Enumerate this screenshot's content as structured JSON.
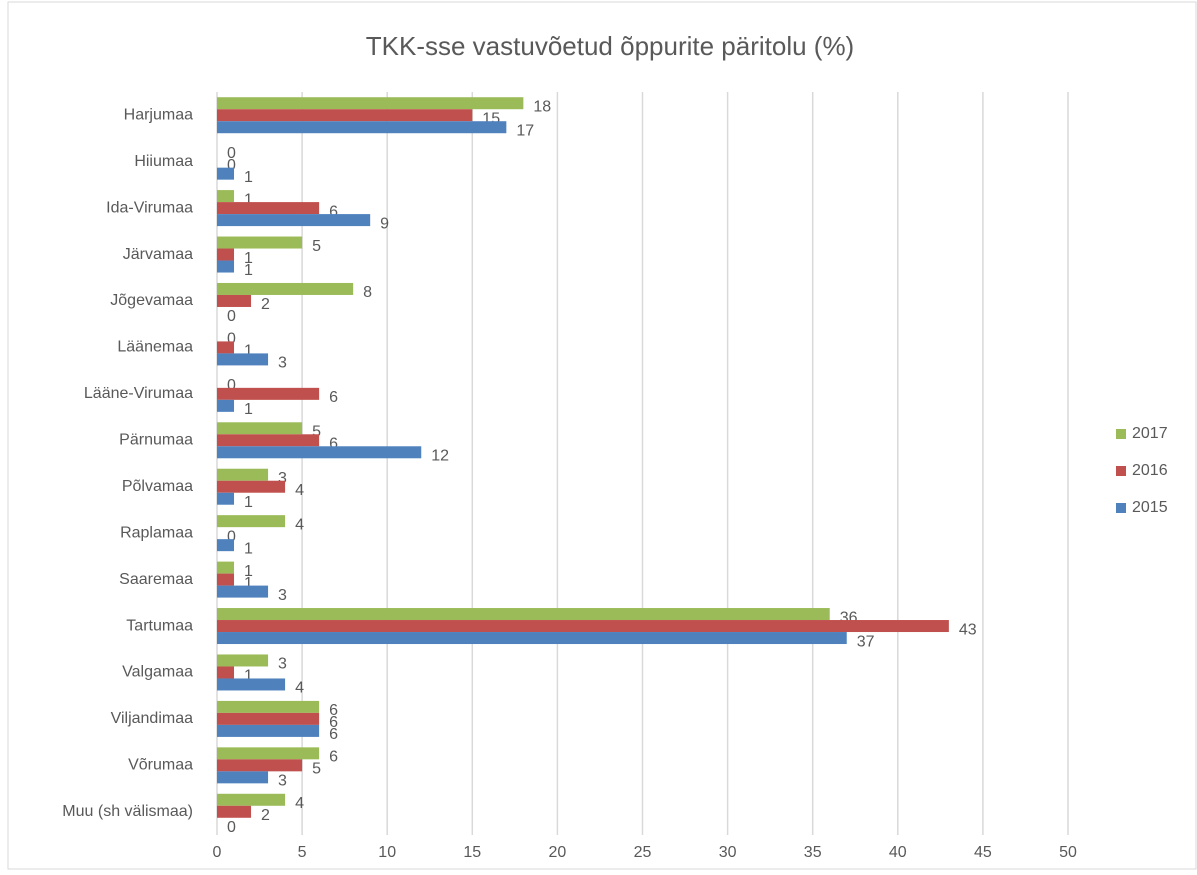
{
  "chart_data": {
    "type": "hbar",
    "title": "TKK-sse vastuvõetud õppurite päritolu (%)",
    "categories": [
      "Harjumaa",
      "Hiiumaa",
      "Ida-Virumaa",
      "Järvamaa",
      "Jõgevamaa",
      "Läänemaa",
      "Lääne-Virumaa",
      "Pärnumaa",
      "Põlvamaa",
      "Raplamaa",
      "Saaremaa",
      "Tartumaa",
      "Valgamaa",
      "Viljandimaa",
      "Võrumaa",
      "Muu (sh välismaa)"
    ],
    "series": [
      {
        "name": "2017",
        "color": "#9bbb59",
        "values": [
          18,
          0,
          1,
          5,
          8,
          0,
          0,
          5,
          3,
          4,
          1,
          36,
          3,
          6,
          6,
          4
        ]
      },
      {
        "name": "2016",
        "color": "#c0504d",
        "values": [
          15,
          0,
          6,
          1,
          2,
          1,
          6,
          6,
          4,
          0,
          1,
          43,
          1,
          6,
          5,
          2
        ]
      },
      {
        "name": "2015",
        "color": "#4f81bd",
        "values": [
          17,
          1,
          9,
          1,
          0,
          3,
          1,
          12,
          1,
          1,
          3,
          37,
          4,
          6,
          3,
          0
        ]
      }
    ],
    "xlim": [
      0,
      50
    ],
    "xticks": [
      0,
      5,
      10,
      15,
      20,
      25,
      30,
      35,
      40,
      45,
      50
    ],
    "grid": true,
    "legend": "right"
  }
}
